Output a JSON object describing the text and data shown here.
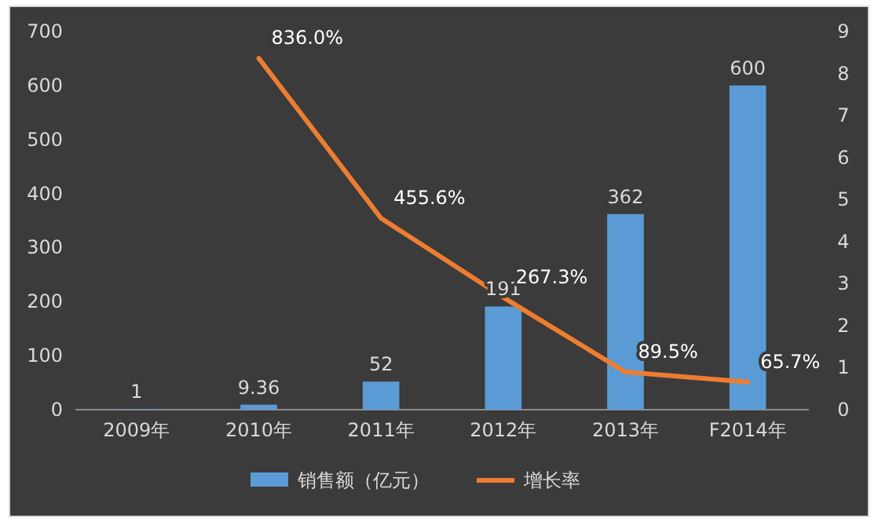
{
  "chart_data": {
    "type": "bar",
    "categories": [
      "2009年",
      "2010年",
      "2011年",
      "2012年",
      "2013年",
      "F2014年"
    ],
    "series": [
      {
        "name": "销售额（亿元）",
        "color": "#5b9bd5",
        "values": [
          1,
          9.36,
          52,
          191,
          362,
          600
        ]
      },
      {
        "name": "增长率",
        "type": "line",
        "axis": "y2",
        "color": "#ed7d31",
        "values": [
          null,
          8.36,
          4.556,
          2.673,
          0.895,
          0.657
        ],
        "value_labels": [
          null,
          "836.0%",
          "455.6%",
          "267.3%",
          "89.5%",
          "65.7%"
        ]
      }
    ],
    "ylim": [
      0,
      700
    ],
    "yticks": [
      0,
      100,
      200,
      300,
      400,
      500,
      600,
      700
    ],
    "y2lim": [
      0,
      9
    ],
    "y2ticks": [
      0,
      1,
      2,
      3,
      4,
      5,
      6,
      7,
      8,
      9
    ],
    "data_labels": true,
    "legend": "bottom"
  }
}
